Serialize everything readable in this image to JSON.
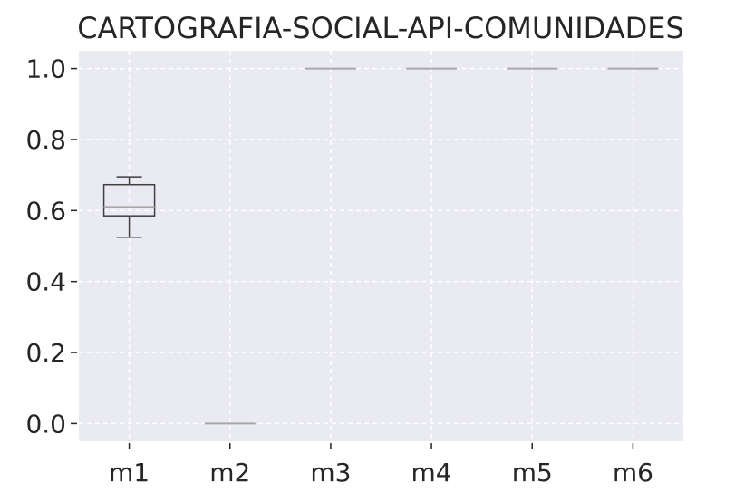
{
  "chart_data": {
    "type": "box",
    "title": "CARTOGRAFIA-SOCIAL-API-COMUNIDADES",
    "xlabel": "",
    "ylabel": "",
    "categories": [
      "m1",
      "m2",
      "m3",
      "m4",
      "m5",
      "m6"
    ],
    "y_ticks": [
      0.0,
      0.2,
      0.4,
      0.6,
      0.8,
      1.0
    ],
    "y_tick_labels": [
      "0.0",
      "0.2",
      "0.4",
      "0.6",
      "0.8",
      "1.0"
    ],
    "ylim": [
      -0.05,
      1.05
    ],
    "grid": true,
    "legend": "none",
    "boxes": [
      {
        "category": "m1",
        "whisker_low": 0.525,
        "q1": 0.585,
        "median": 0.61,
        "q3": 0.673,
        "whisker_high": 0.695
      },
      {
        "category": "m2",
        "whisker_low": 0.0,
        "q1": 0.0,
        "median": 0.0,
        "q3": 0.0,
        "whisker_high": 0.0
      },
      {
        "category": "m3",
        "whisker_low": 1.0,
        "q1": 1.0,
        "median": 1.0,
        "q3": 1.0,
        "whisker_high": 1.0
      },
      {
        "category": "m4",
        "whisker_low": 1.0,
        "q1": 1.0,
        "median": 1.0,
        "q3": 1.0,
        "whisker_high": 1.0
      },
      {
        "category": "m5",
        "whisker_low": 1.0,
        "q1": 1.0,
        "median": 1.0,
        "q3": 1.0,
        "whisker_high": 1.0
      },
      {
        "category": "m6",
        "whisker_low": 1.0,
        "q1": 1.0,
        "median": 1.0,
        "q3": 1.0,
        "whisker_high": 1.0
      }
    ],
    "colors": {
      "plot_background": "#eaeaf2",
      "grid": "#ffffff",
      "box_line": "#3f3f3f",
      "median_line": "#a8a8a8",
      "text": "#262626"
    }
  }
}
